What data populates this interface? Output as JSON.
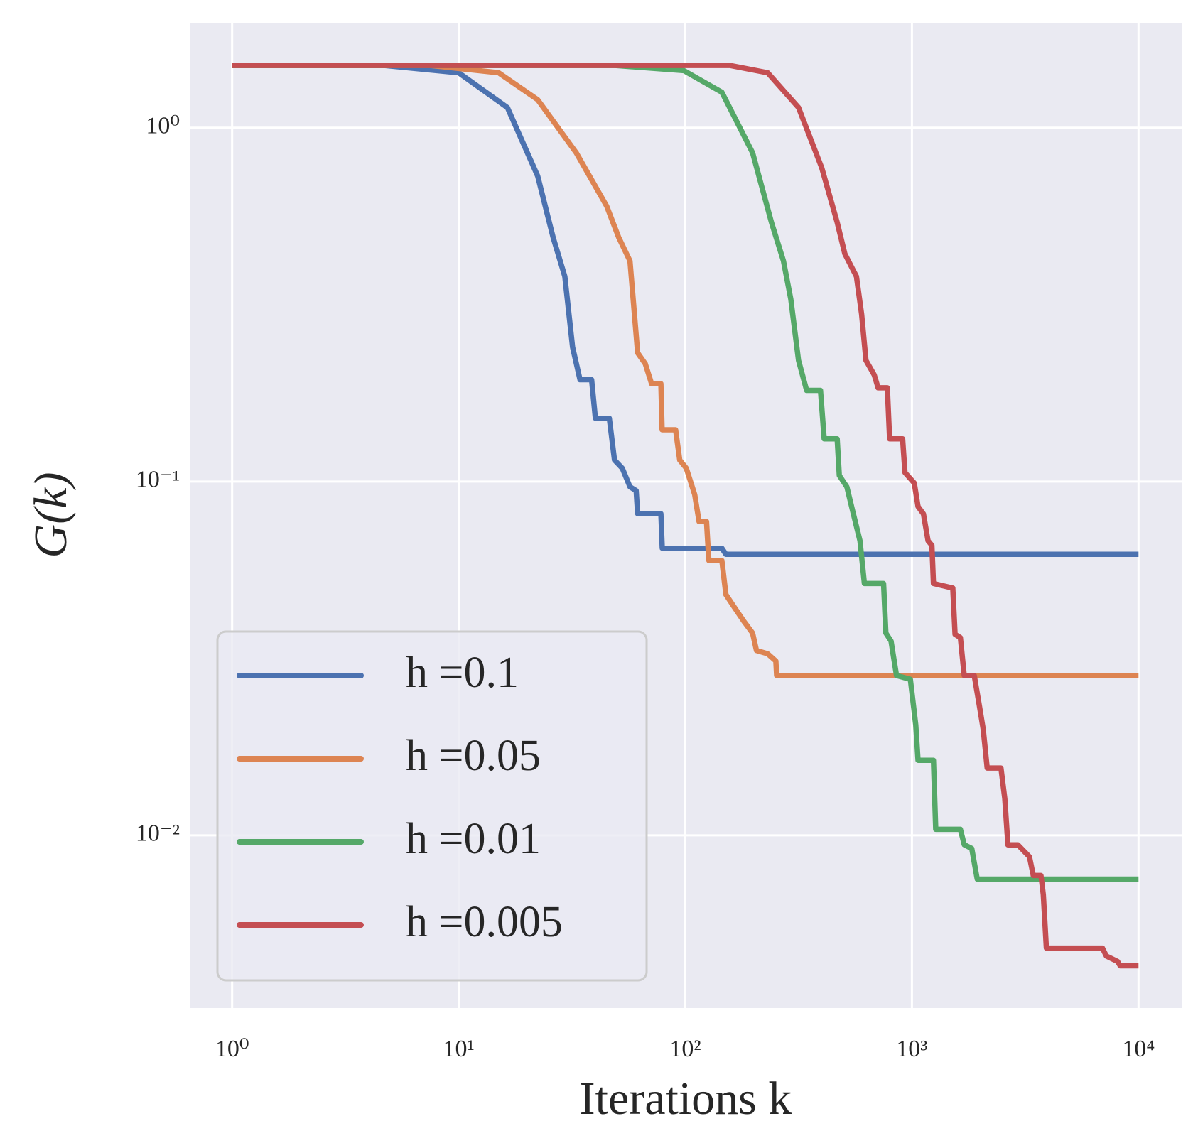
{
  "chart_data": {
    "type": "line",
    "xlabel": "Iterations k",
    "ylabel": "G(k)",
    "xscale": "log",
    "yscale": "log",
    "grid": true,
    "legend": "lower left",
    "xlim": [
      0.65,
      15500
    ],
    "ylim": [
      0.00325,
      1.98
    ],
    "xticks": [
      {
        "value": 1,
        "label": "10⁰"
      },
      {
        "value": 10,
        "label": "10¹"
      },
      {
        "value": 100,
        "label": "10²"
      },
      {
        "value": 1000,
        "label": "10³"
      },
      {
        "value": 10000,
        "label": "10⁴"
      }
    ],
    "yticks": [
      {
        "value": 1,
        "label": "10⁰"
      },
      {
        "value": 0.1,
        "label": "10⁻¹"
      },
      {
        "value": 0.01,
        "label": "10⁻²"
      }
    ],
    "series": [
      {
        "name": "h =0.1",
        "color": "#4c72b0",
        "x": [
          1,
          4.7,
          10,
          16.4,
          22.3,
          26.1,
          29.4,
          31.8,
          34.3,
          38.6,
          40.1,
          46.2,
          48.7,
          52.7,
          57,
          60.7,
          61.6,
          78,
          79.1,
          145,
          151,
          10000
        ],
        "values": [
          1.5,
          1.5,
          1.43,
          1.14,
          0.73,
          0.49,
          0.38,
          0.24,
          0.194,
          0.194,
          0.151,
          0.151,
          0.115,
          0.109,
          0.0966,
          0.0942,
          0.0811,
          0.0811,
          0.0648,
          0.0648,
          0.0623,
          0.0623
        ]
      },
      {
        "name": "h =0.05",
        "color": "#dd8452",
        "x": [
          1,
          7.5,
          15,
          22.3,
          33,
          45,
          50.8,
          57,
          61.6,
          66.6,
          71,
          78,
          79,
          90.6,
          94.5,
          101,
          110,
          115,
          124,
          127,
          145,
          151,
          163,
          181,
          198,
          206,
          231,
          251,
          253,
          10000
        ],
        "values": [
          1.5,
          1.5,
          1.43,
          1.2,
          0.85,
          0.6,
          0.49,
          0.42,
          0.231,
          0.215,
          0.189,
          0.189,
          0.14,
          0.14,
          0.115,
          0.109,
          0.0918,
          0.0771,
          0.0771,
          0.0598,
          0.0598,
          0.0479,
          0.0445,
          0.0403,
          0.0373,
          0.0333,
          0.0326,
          0.0311,
          0.0283,
          0.0283
        ]
      },
      {
        "name": "h =0.01",
        "color": "#55a868",
        "x": [
          1,
          49,
          98.5,
          145,
          198,
          240,
          271,
          292,
          316,
          343,
          395,
          410,
          468,
          478,
          516,
          546,
          590,
          617,
          750,
          767,
          809,
          855,
          984,
          1040,
          1064,
          1245,
          1274,
          1636,
          1702,
          1837,
          1942,
          10000
        ],
        "values": [
          1.5,
          1.5,
          1.45,
          1.26,
          0.85,
          0.54,
          0.42,
          0.328,
          0.22,
          0.181,
          0.181,
          0.132,
          0.132,
          0.104,
          0.0966,
          0.0832,
          0.068,
          0.0515,
          0.0515,
          0.0373,
          0.0354,
          0.0283,
          0.0276,
          0.0205,
          0.0163,
          0.0163,
          0.0104,
          0.0104,
          0.00941,
          0.00918,
          0.00752,
          0.00752
        ]
      },
      {
        "name": "h =0.005",
        "color": "#c44e52",
        "x": [
          1,
          157,
          231,
          316,
          400,
          468,
          506,
          569,
          600,
          627,
          682,
          709,
          779,
          797,
          910,
          932,
          1024,
          1064,
          1124,
          1178,
          1225,
          1245,
          1515,
          1550,
          1636,
          1702,
          1884,
          1986,
          2065,
          2148,
          2472,
          2570,
          2653,
          2937,
          3302,
          3433,
          3710,
          3800,
          3920,
          6930,
          7210,
          8090,
          8300,
          10000
        ],
        "values": [
          1.5,
          1.5,
          1.43,
          1.14,
          0.77,
          0.54,
          0.44,
          0.38,
          0.297,
          0.22,
          0.2,
          0.184,
          0.184,
          0.132,
          0.132,
          0.106,
          0.099,
          0.085,
          0.081,
          0.068,
          0.066,
          0.0515,
          0.05,
          0.037,
          0.0362,
          0.0283,
          0.0283,
          0.0232,
          0.0199,
          0.0155,
          0.0155,
          0.0127,
          0.0094,
          0.0094,
          0.0087,
          0.0077,
          0.0077,
          0.0068,
          0.0048,
          0.0048,
          0.00456,
          0.0044,
          0.00428,
          0.00428
        ]
      }
    ]
  }
}
